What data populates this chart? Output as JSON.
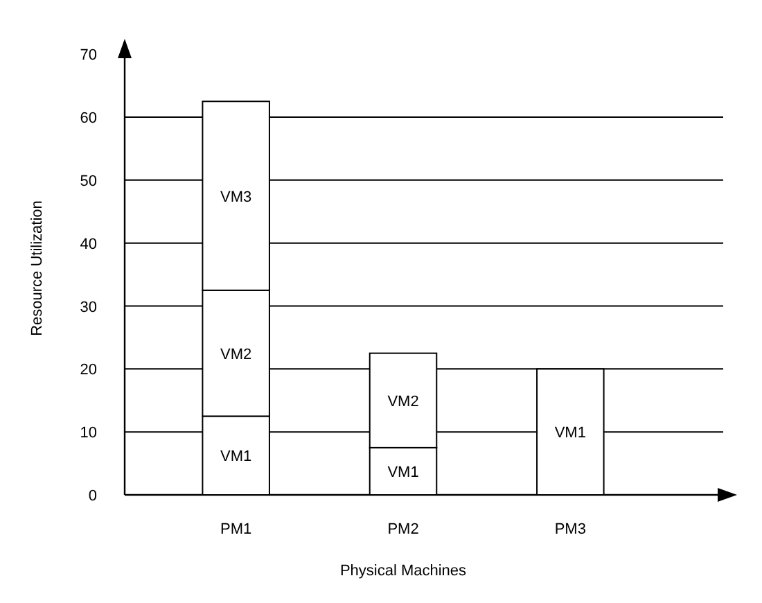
{
  "chart_data": {
    "type": "bar",
    "stacked": true,
    "xlabel": "Physical Machines",
    "ylabel": "Resource Utilization",
    "categories": [
      "PM1",
      "PM2",
      "PM3"
    ],
    "series": [
      {
        "name": "VM1",
        "color": "#ffffff",
        "values": [
          12.5,
          7.5,
          20
        ]
      },
      {
        "name": "VM2",
        "color": "#ffffff",
        "values": [
          20,
          15,
          null
        ]
      },
      {
        "name": "VM3",
        "color": "#ffffff",
        "values": [
          30,
          null,
          null
        ]
      }
    ],
    "ylim": [
      0,
      72
    ],
    "yticks": [
      0,
      10,
      20,
      30,
      40,
      50,
      60,
      70
    ],
    "grid": "y"
  }
}
